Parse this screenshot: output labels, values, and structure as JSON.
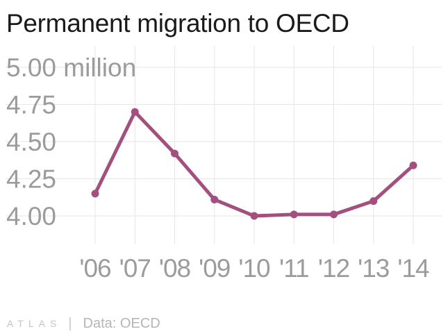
{
  "title": "Permanent migration to OECD",
  "footer": {
    "logo": "ATLAS",
    "separator": "|",
    "source": "Data: OECD"
  },
  "colors": {
    "line": "#a3507f",
    "grid": "#e6e6e6",
    "axis_text": "#9b9b9b",
    "title": "#1a1a1a"
  },
  "chart_data": {
    "type": "line",
    "title": "Permanent migration to OECD",
    "xlabel": "",
    "ylabel": "",
    "categories": [
      "'06",
      "'07",
      "'08",
      "'09",
      "'10",
      "'11",
      "'12",
      "'13",
      "'14"
    ],
    "series": [
      {
        "values": [
          4.15,
          4.7,
          4.42,
          4.11,
          4.0,
          4.01,
          4.01,
          4.1,
          4.34
        ]
      }
    ],
    "y_ticks": [
      4.0,
      4.25,
      4.5,
      4.75,
      5.0
    ],
    "y_tick_labels": [
      "4.00",
      "4.25",
      "4.50",
      "4.75",
      "5.00 million"
    ],
    "ylim": [
      3.86,
      5.0
    ],
    "grid": true,
    "legend": "none"
  }
}
